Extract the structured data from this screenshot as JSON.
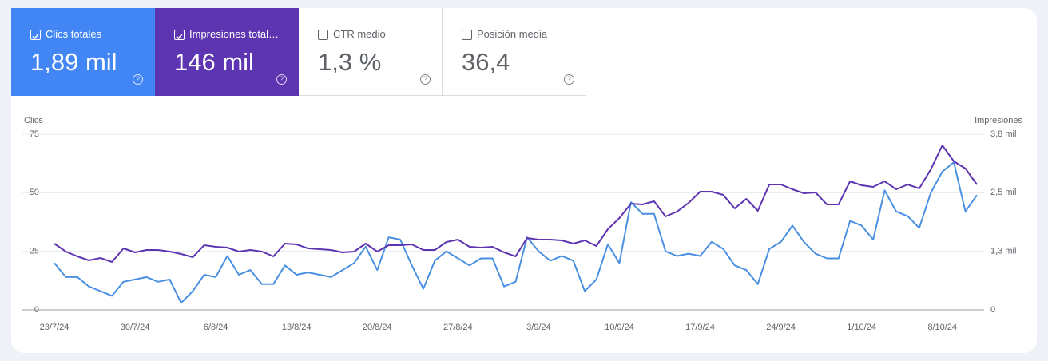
{
  "cards": [
    {
      "label": "Clics totales",
      "value": "1,89 mil",
      "checked": true
    },
    {
      "label": "Impresiones total…",
      "value": "146 mil",
      "checked": true
    },
    {
      "label": "CTR medio",
      "value": "1,3 %",
      "checked": false
    },
    {
      "label": "Posición media",
      "value": "36,4",
      "checked": false
    }
  ],
  "chart_data": {
    "type": "line",
    "y_label": "Clics",
    "y2_label": "Impresiones",
    "categories": [
      "23/7/24",
      null,
      null,
      null,
      null,
      null,
      null,
      "30/7/24",
      null,
      null,
      null,
      null,
      null,
      null,
      "6/8/24",
      null,
      null,
      null,
      null,
      null,
      null,
      "13/8/24",
      null,
      null,
      null,
      null,
      null,
      null,
      "20/8/24",
      null,
      null,
      null,
      null,
      null,
      null,
      "27/8/24",
      null,
      null,
      null,
      null,
      null,
      null,
      "3/9/24",
      null,
      null,
      null,
      null,
      null,
      null,
      "10/9/24",
      null,
      null,
      null,
      null,
      null,
      null,
      "17/9/24",
      null,
      null,
      null,
      null,
      null,
      null,
      "24/9/24",
      null,
      null,
      null,
      null,
      null,
      null,
      "1/10/24",
      null,
      null,
      null,
      null,
      null,
      null,
      "8/10/24",
      null,
      null,
      null
    ],
    "ylim": [
      0,
      75
    ],
    "yticks": [
      0,
      25,
      50,
      75
    ],
    "y2lim": [
      0,
      3750
    ],
    "y2ticks": [
      0,
      {
        "value": 1250,
        "label": "1,3 mil"
      },
      {
        "value": 2500,
        "label": "2,5 mil"
      },
      {
        "value": 3750,
        "label": "3,8 mil"
      }
    ],
    "grid": true,
    "series": [
      {
        "name": "Clics totales",
        "color": "#4a90e2",
        "values": [
          20,
          14,
          14,
          10,
          8,
          6,
          12,
          13,
          14,
          12,
          13,
          3,
          8,
          15,
          14,
          23,
          15,
          17,
          11,
          11,
          19,
          15,
          16,
          15,
          14,
          17,
          20,
          27,
          17,
          31,
          30,
          19,
          9,
          21,
          25,
          22,
          19,
          22,
          22,
          10,
          12,
          31,
          25,
          21,
          23,
          21,
          8,
          13,
          28,
          20,
          46,
          41,
          41,
          25,
          23,
          24,
          23,
          29,
          26,
          19,
          17,
          11,
          26,
          29,
          36,
          29,
          24,
          22,
          22,
          38,
          36,
          30,
          51,
          42,
          40,
          35,
          50,
          59,
          63,
          42,
          49
        ]
      },
      {
        "name": "Impresiones totales",
        "color": "#5e35b1",
        "axis": "y2",
        "values": [
          1415,
          1244,
          1142,
          1057,
          1108,
          1023,
          1312,
          1227,
          1278,
          1278,
          1244,
          1193,
          1125,
          1381,
          1347,
          1330,
          1244,
          1278,
          1244,
          1142,
          1415,
          1398,
          1312,
          1295,
          1278,
          1227,
          1244,
          1415,
          1244,
          1381,
          1381,
          1398,
          1278,
          1278,
          1449,
          1500,
          1347,
          1330,
          1347,
          1227,
          1142,
          1534,
          1500,
          1500,
          1483,
          1415,
          1483,
          1364,
          1722,
          1960,
          2267,
          2250,
          2318,
          1994,
          2097,
          2284,
          2523,
          2523,
          2455,
          2165,
          2369,
          2114,
          2676,
          2676,
          2574,
          2489,
          2506,
          2250,
          2250,
          2744,
          2659,
          2625,
          2744,
          2574,
          2676,
          2591,
          3000,
          3511,
          3170,
          3017,
          2676
        ]
      }
    ]
  }
}
